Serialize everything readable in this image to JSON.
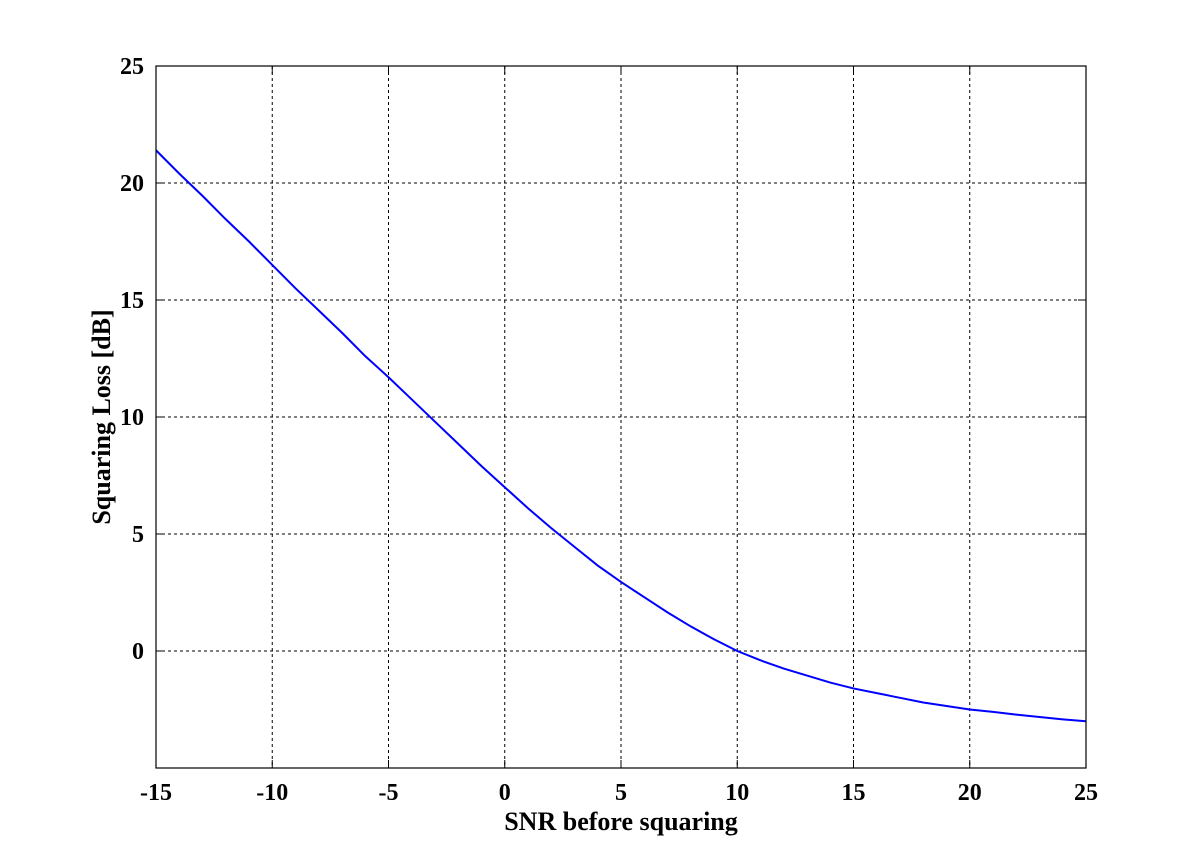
{
  "chart_data": {
    "type": "line",
    "title": "",
    "xlabel": "SNR before squaring",
    "ylabel": "Squaring Loss [dB]",
    "xlim": [
      -15,
      25
    ],
    "ylim": [
      -5,
      25
    ],
    "x_ticks": [
      -15,
      -10,
      -5,
      0,
      5,
      10,
      15,
      20,
      25
    ],
    "y_ticks": [
      0,
      5,
      10,
      15,
      20,
      25
    ],
    "x_tick_labels": [
      "-15",
      "-10",
      "-5",
      "0",
      "5",
      "10",
      "15",
      "20",
      "25"
    ],
    "y_tick_labels": [
      "0",
      "5",
      "10",
      "15",
      "20",
      "25"
    ],
    "grid": true,
    "line_color": "#0000ff",
    "series": [
      {
        "x": [
          -15,
          -14,
          -13,
          -12,
          -11,
          -10,
          -9,
          -8,
          -7,
          -6,
          -5,
          -4,
          -3,
          -2,
          -1,
          0,
          1,
          2,
          3,
          4,
          5,
          6,
          7,
          8,
          9,
          10,
          11,
          12,
          13,
          14,
          15,
          16,
          17,
          18,
          19,
          20,
          21,
          22,
          23,
          24,
          25
        ],
        "y": [
          21.4,
          20.4,
          19.45,
          18.45,
          17.5,
          16.5,
          15.5,
          14.55,
          13.6,
          12.6,
          11.7,
          10.75,
          9.8,
          8.85,
          7.9,
          7.0,
          6.1,
          5.25,
          4.45,
          3.65,
          2.95,
          2.3,
          1.65,
          1.05,
          0.5,
          0.0,
          -0.4,
          -0.75,
          -1.05,
          -1.35,
          -1.6,
          -1.8,
          -2.0,
          -2.2,
          -2.35,
          -2.5,
          -2.6,
          -2.72,
          -2.82,
          -2.92,
          -3.0
        ]
      }
    ]
  }
}
